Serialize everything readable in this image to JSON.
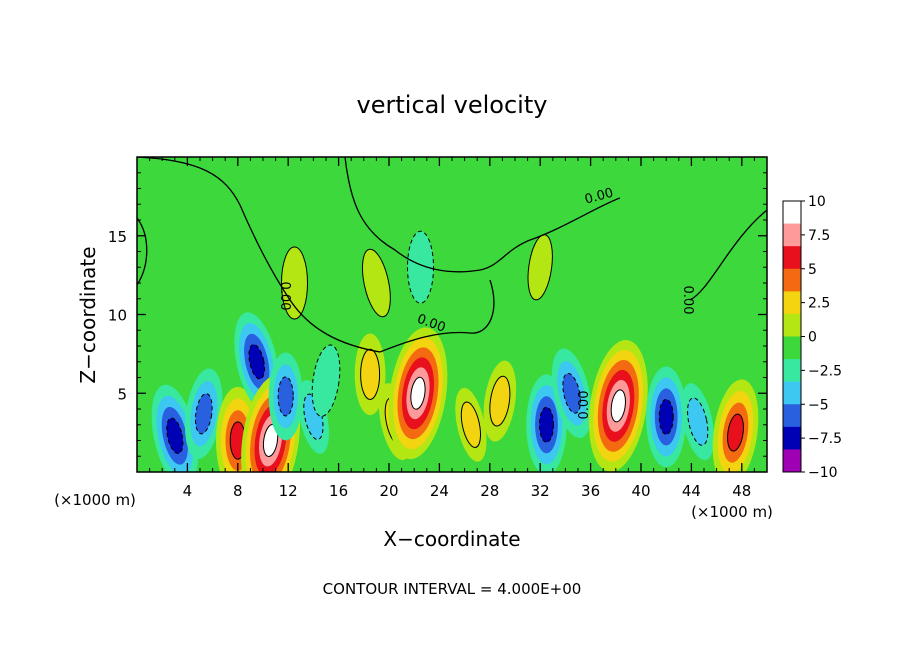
{
  "chart_data": {
    "type": "heatmap",
    "title": "vertical velocity",
    "xlabel": "X−coordinate",
    "ylabel": "Z−coordinate",
    "x_unit": "(×1000 m)",
    "x_unit_right": "(×1000 m)",
    "xlim": [
      0,
      50
    ],
    "ylim": [
      0,
      20
    ],
    "x_ticks": [
      4,
      8,
      12,
      16,
      20,
      24,
      28,
      32,
      36,
      40,
      44,
      48
    ],
    "x_tick_labels": [
      "4",
      "8",
      "12",
      "16",
      "20",
      "24",
      "28",
      "32",
      "36",
      "40",
      "44",
      "48"
    ],
    "y_ticks": [
      5,
      10,
      15
    ],
    "y_tick_labels": [
      "5",
      "10",
      "15"
    ],
    "colorbar": {
      "levels": [
        10,
        7.5,
        5,
        2.5,
        0,
        -2.5,
        -5,
        -7.5,
        -10
      ],
      "labels": [
        "10",
        "7.5",
        "5",
        "2.5",
        "0",
        "−2.5",
        "−5",
        "−7.5",
        "−10"
      ],
      "colors": [
        "#ffffff",
        "#ff9a9a",
        "#e8101c",
        "#f46a10",
        "#f2d410",
        "#b4e614",
        "#3cd83c",
        "#38e8a0",
        "#3cc8f0",
        "#2860e0",
        "#0000b4",
        "#a000b4"
      ]
    },
    "contour_labels": [
      "0.00",
      "0.00",
      "0.00",
      "0.00",
      "0.00"
    ],
    "contour_interval_text": "CONTOUR INTERVAL = 4.000E+00",
    "features": [
      {
        "x": 3.0,
        "z": 2.3,
        "w": -7.5
      },
      {
        "x": 5.3,
        "z": 3.7,
        "w": -5.5
      },
      {
        "x": 8.0,
        "z": 2.0,
        "w": 8.0
      },
      {
        "x": 9.5,
        "z": 7.0,
        "w": -7.0
      },
      {
        "x": 10.6,
        "z": 2.0,
        "w": 12.0
      },
      {
        "x": 11.8,
        "z": 4.8,
        "w": -5.0
      },
      {
        "x": 14.0,
        "z": 3.5,
        "w": -3.0
      },
      {
        "x": 15.0,
        "z": 5.8,
        "w": -2.5
      },
      {
        "x": 18.5,
        "z": 6.2,
        "w": 4.0
      },
      {
        "x": 20.5,
        "z": 3.2,
        "w": 3.5
      },
      {
        "x": 22.3,
        "z": 5.0,
        "w": 12.0
      },
      {
        "x": 22.5,
        "z": 13.0,
        "w": -2.5
      },
      {
        "x": 26.5,
        "z": 3.0,
        "w": 3.0
      },
      {
        "x": 28.8,
        "z": 4.5,
        "w": 4.0
      },
      {
        "x": 32.5,
        "z": 3.0,
        "w": -7.0
      },
      {
        "x": 34.5,
        "z": 5.0,
        "w": -5.5
      },
      {
        "x": 38.2,
        "z": 4.2,
        "w": 12.0
      },
      {
        "x": 42.0,
        "z": 3.5,
        "w": -7.0
      },
      {
        "x": 44.5,
        "z": 3.2,
        "w": -3.5
      },
      {
        "x": 47.5,
        "z": 2.5,
        "w": 8.0
      },
      {
        "x": 12.5,
        "z": 12.0,
        "w": 2.5
      },
      {
        "x": 19.0,
        "z": 12.0,
        "w": 2.0
      },
      {
        "x": 32.0,
        "z": 13.0,
        "w": 1.5
      }
    ]
  }
}
